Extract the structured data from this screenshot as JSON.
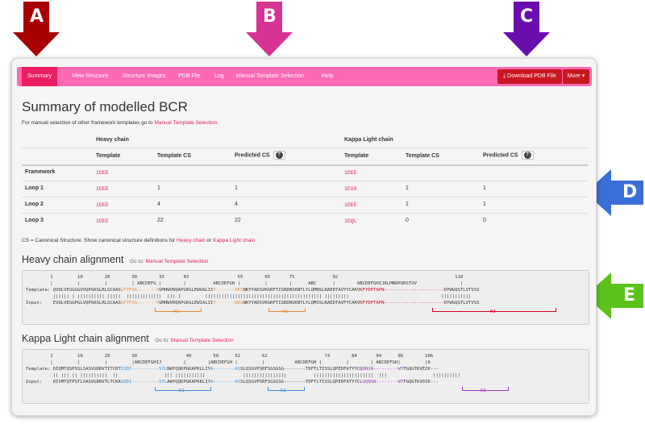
{
  "callouts": [
    "A",
    "B",
    "C",
    "D",
    "E"
  ],
  "colors": {
    "nav": "#ff69b4",
    "active": "#e91e63",
    "download": "#c9161f",
    "arrowA": "#a80000",
    "arrowB": "#d63394",
    "arrowC": "#6a0dad",
    "arrowD": "#3a6fd8",
    "arrowE": "#5cc21a"
  },
  "nav": {
    "items": [
      "Summary",
      "View Structure",
      "Structure Images",
      "PDB File",
      "Log",
      "Manual Template Selection",
      "Help"
    ],
    "download_label": "Download PDB File",
    "download_icon": "download-icon",
    "more_label": "More"
  },
  "summary": {
    "title": "Summary of modelled BCR",
    "subtitle_prefix": "For manual selection of other framework templates go to",
    "subtitle_link": "Manual Template Selection."
  },
  "table": {
    "heavy_header": "Heavy chain",
    "light_header": "Kappa Light chain",
    "col_template": "Template",
    "col_template_cs": "Template CS",
    "col_predicted_cs": "Predicted CS",
    "info_icon": "?",
    "rows": [
      {
        "label": "Framework",
        "h_tpl": "1DEE",
        "h_tcs": "",
        "h_pcs": "",
        "l_tpl": "1DEE",
        "l_tcs": "",
        "l_pcs": ""
      },
      {
        "label": "Loop 1",
        "h_tpl": "1DEE",
        "h_tcs": "1",
        "h_pcs": "1",
        "l_tpl": "1EO8",
        "l_tcs": "1",
        "l_pcs": "1"
      },
      {
        "label": "Loop 2",
        "h_tpl": "1DEE",
        "h_tcs": "4",
        "h_pcs": "4",
        "l_tpl": "1DEE",
        "l_tcs": "1",
        "l_pcs": "1"
      },
      {
        "label": "Loop 3",
        "h_tpl": "1DEE",
        "h_tcs": "22",
        "h_pcs": "22",
        "l_tpl": "1DQL",
        "l_tcs": "0",
        "l_pcs": "0"
      }
    ],
    "footnote_prefix": "CS = Canonical Structure. Show canonical structure definitions for",
    "footnote_heavy": "Heavy chain",
    "footnote_or": "or",
    "footnote_light": "Kappa Light chain"
  },
  "heavy_alignment": {
    "title": "Heavy chain alignment",
    "goto": "Go to:",
    "goto_link": "Manual Template Selection",
    "numbers": "         1         10        20        30        33       43                  55        65       75              92                                           110",
    "ticks": "         |         |         |         | ABCDEFG |        |          ABCDEFGH |         |        |      ABC      |        ABCDEFGHIJKLMNOPQRSTUV                |",
    "template_label": "Template:",
    "template_seq_a": "QVQLVESGGGVVQPGKSLRLSCAAS",
    "template_seq_h1": "GFTFSG-------Y",
    "template_seq_b": "GMHWVRQAPGKGLEWVALIS",
    "template_seq_h2": "Y-------DES",
    "template_seq_c": "NKYYADSVKGRFTISRDNSKNTLYLQMNSLRAEDTAVYYCAKV",
    "template_seq_h3": "KFYDPTAPN----------------------",
    "template_seq_d": "DYWGQGTLVTVSS",
    "match_line": "          |||||| | |||||||||| |||||  |||||||||||||  ||| |         ||||||||||||||||||||||||||||||||||||||||||| |||||||||                                  |||||||||||",
    "input_label": "Input:",
    "input_seq_a": "EVQLVESGPGLVQPGKSLRLSCAAS",
    "input_seq_h1": "GFTFSG-------Y",
    "input_seq_b": "GMHWVRQAPGKGLEWIALII",
    "input_seq_h2": "Y-------DES",
    "input_seq_c": "NKYYADSVKGRFTISRDNSKNTLYLQMSSLRAEDTAVFYCAKV",
    "input_seq_h3": "KFYDPTAPN----------------------",
    "input_seq_d": "DYWGQGTLVTVSS",
    "loops": [
      "H1",
      "H2",
      "H3"
    ]
  },
  "light_alignment": {
    "title": "Kappa Light chain alignment",
    "goto": "Go to:",
    "goto_link": "Manual Template Selection",
    "numbers": "         1         10        20        30                  40        50      52        62                     74        84       94      96        106",
    "ticks": "         |         |         |         |ABCDEFGHIJ        |        |ABCDEFGH |         |           ABCDEFGH |         |        | ABCDEFGH|         |A",
    "template_label": "Template:",
    "template_seq_a": "DIQMTQSPSSLSASVGDRVTITCRT",
    "template_seq_k1": "SSDI----------SYL",
    "template_seq_b": "NWYQQKPGKAPKLLIY",
    "template_seq_k2": "A--------AS",
    "template_seq_c": "SLQSGVPSRFSGSGSG--------TDFTLTISSLQPEDFATYYCQ",
    "template_seq_k3": "QNSN---------WT",
    "template_seq_d": "FGQGTKVEIK---",
    "match_line": "          || ||| || ||||||||||  ||                 ||| |||||||||||              ||||||||||||||||          ||||||||||||||||||||||  |||                 ||||||||||",
    "input_label": "Input:",
    "input_seq_a": "DIVMTQTPSTLSASVGDRVTLTCKA",
    "input_seq_k1": "SQDI----------SYL",
    "input_seq_b": "AWYQQKPGKAPKKLIY",
    "input_seq_k2": "A--------AS",
    "input_seq_c": "SLQSGVPSRFSGSGSG--------TDFTLTISSLQPEDFATYYCL",
    "input_seq_k3": "QQNSN--------WT",
    "input_seq_d": "FGQGTKVDIK---",
    "loops": [
      "K1",
      "K2",
      "K3"
    ]
  }
}
